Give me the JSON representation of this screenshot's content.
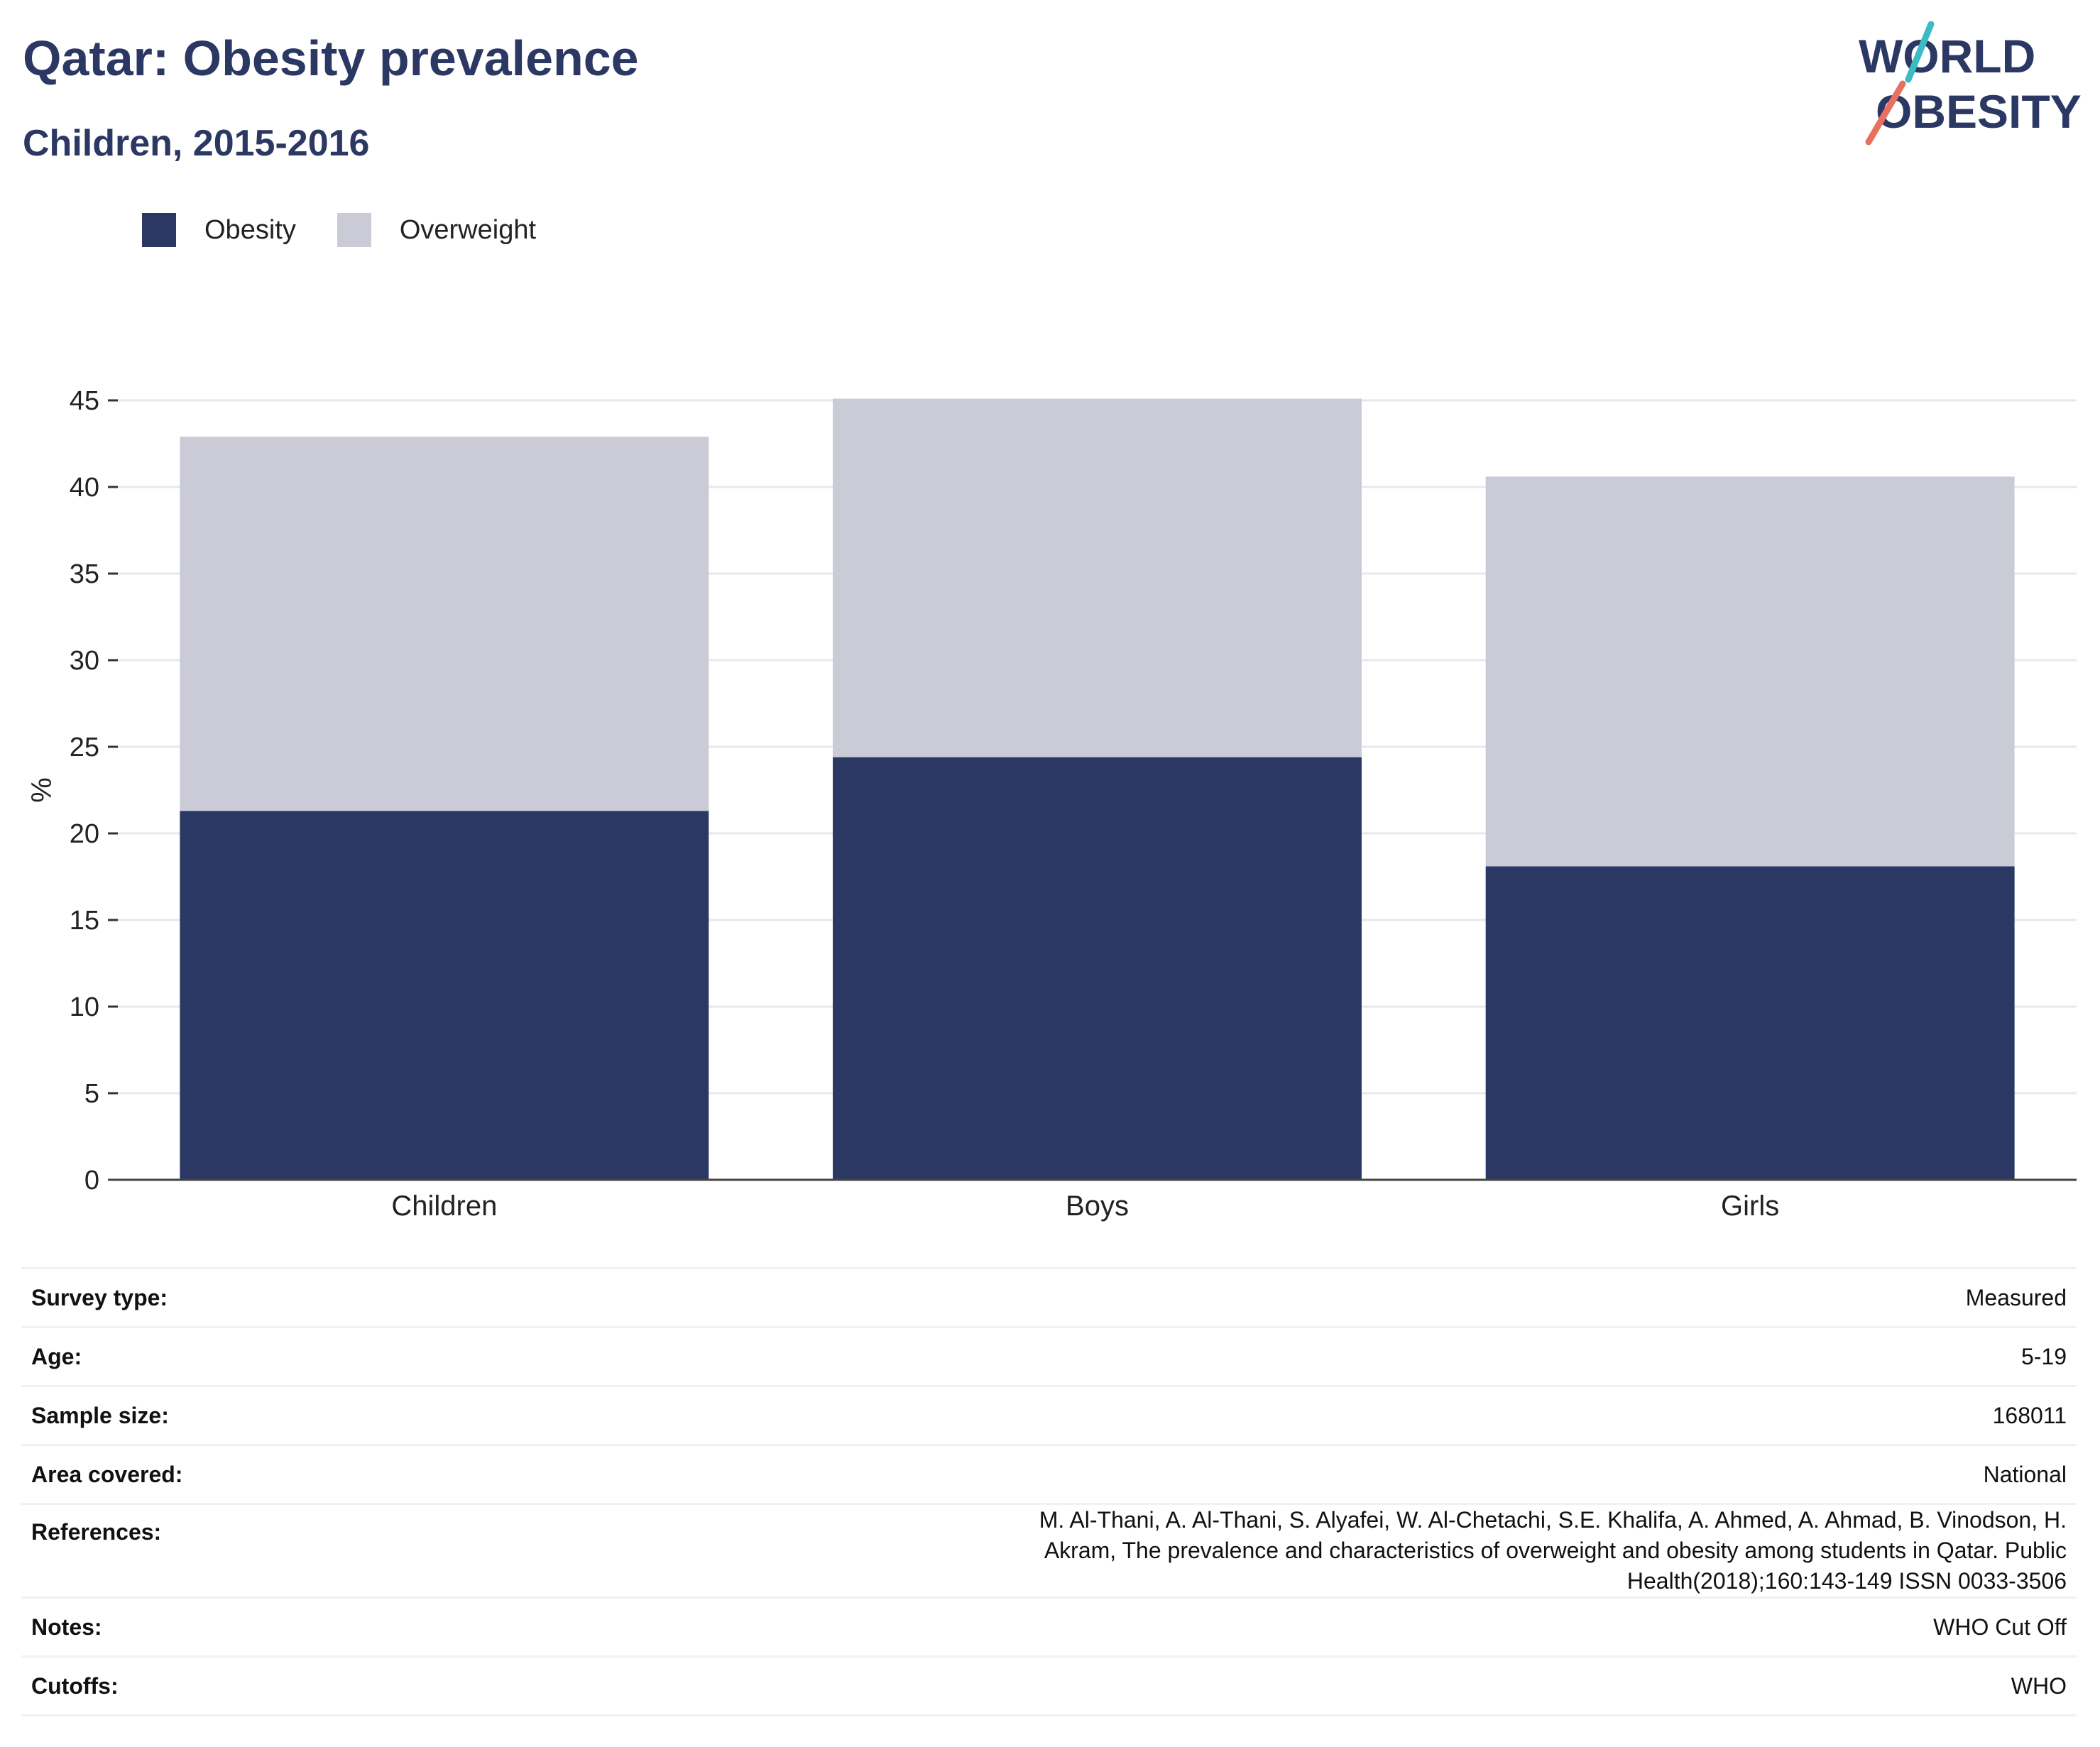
{
  "header": {
    "title": "Qatar: Obesity prevalence",
    "subtitle": "Children, 2015-2016"
  },
  "logo": {
    "line1": "WORLD",
    "line2": "OBESITY",
    "navy": "#2b3863",
    "teal": "#3bbcc4",
    "coral": "#e8705f"
  },
  "legend": {
    "items": [
      {
        "label": "Obesity",
        "color": "#2b3863"
      },
      {
        "label": "Overweight",
        "color": "#cacbd6"
      }
    ]
  },
  "chart_data": {
    "type": "bar",
    "stacked": true,
    "categories": [
      "Children",
      "Boys",
      "Girls"
    ],
    "series": [
      {
        "name": "Obesity",
        "color": "#2b3863",
        "values": [
          21.3,
          24.4,
          18.1
        ]
      },
      {
        "name": "Overweight",
        "color": "#cacbd6",
        "values": [
          21.6,
          20.7,
          22.5
        ]
      }
    ],
    "ylabel": "%",
    "ylim": [
      0,
      45
    ],
    "yticks": [
      0,
      5,
      10,
      15,
      20,
      25,
      30,
      35,
      40,
      45
    ],
    "grid": true,
    "legend_position": "top-left"
  },
  "info": {
    "rows": [
      {
        "label": "Survey type:",
        "value": "Measured"
      },
      {
        "label": "Age:",
        "value": "5-19"
      },
      {
        "label": "Sample size:",
        "value": "168011"
      },
      {
        "label": "Area covered:",
        "value": "National"
      },
      {
        "label": "References:",
        "value": "M. Al-Thani, A. Al-Thani, S. Alyafei, W. Al-Chetachi, S.E. Khalifa, A. Ahmed, A. Ahmad, B. Vinodson, H. Akram, The prevalence and characteristics of overweight and obesity among students in Qatar. Public Health(2018);160:143-149 ISSN 0033-3506"
      },
      {
        "label": "Notes:",
        "value": "WHO Cut Off"
      },
      {
        "label": "Cutoffs:",
        "value": "WHO"
      }
    ]
  }
}
